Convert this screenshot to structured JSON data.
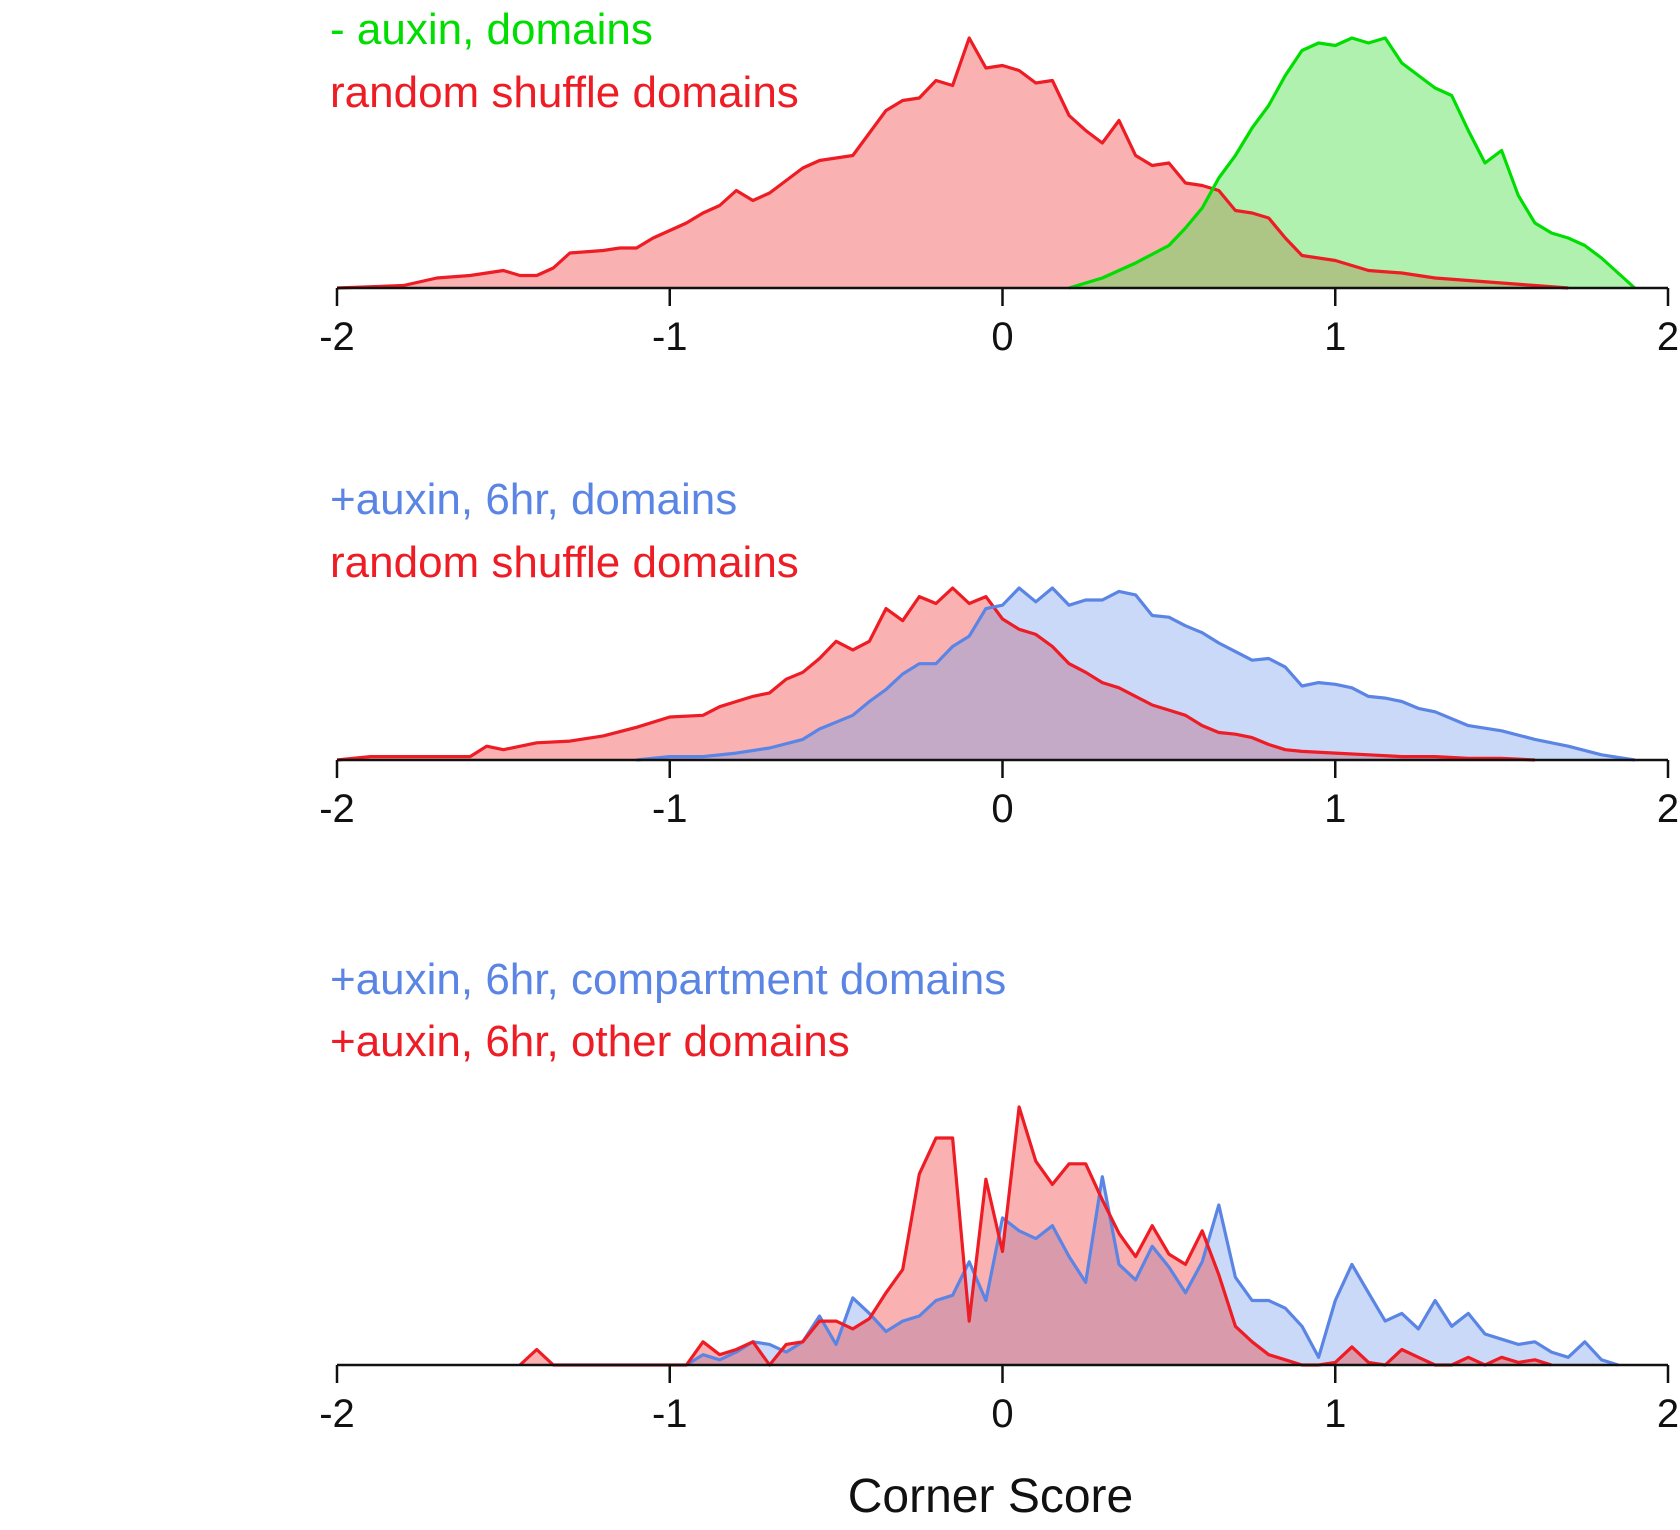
{
  "chart_data": [
    {
      "type": "area",
      "xlim": [
        -2,
        2
      ],
      "ylim": [
        0,
        1
      ],
      "xticks": [
        "-2",
        "-1",
        "0",
        "1",
        "2"
      ],
      "legend_position": "top-left",
      "series": [
        {
          "name": "random shuffle domains",
          "color": "#ee1c24",
          "fill": "rgba(240, 70, 70, 0.42)",
          "x": [
            -2.0,
            -1.8,
            -1.7,
            -1.6,
            -1.5,
            -1.45,
            -1.4,
            -1.35,
            -1.3,
            -1.2,
            -1.15,
            -1.1,
            -1.05,
            -1.0,
            -0.95,
            -0.9,
            -0.85,
            -0.8,
            -0.75,
            -0.7,
            -0.65,
            -0.6,
            -0.55,
            -0.5,
            -0.45,
            -0.4,
            -0.35,
            -0.3,
            -0.25,
            -0.2,
            -0.15,
            -0.1,
            -0.05,
            0.0,
            0.05,
            0.1,
            0.15,
            0.2,
            0.25,
            0.3,
            0.35,
            0.4,
            0.45,
            0.5,
            0.55,
            0.6,
            0.65,
            0.7,
            0.75,
            0.8,
            0.85,
            0.9,
            1.0,
            1.1,
            1.2,
            1.3,
            1.4,
            1.5,
            1.6,
            1.7
          ],
          "values": [
            0.0,
            0.01,
            0.04,
            0.05,
            0.07,
            0.05,
            0.05,
            0.08,
            0.14,
            0.15,
            0.16,
            0.16,
            0.2,
            0.23,
            0.26,
            0.3,
            0.33,
            0.39,
            0.35,
            0.38,
            0.43,
            0.48,
            0.51,
            0.52,
            0.53,
            0.62,
            0.71,
            0.75,
            0.76,
            0.83,
            0.81,
            1.0,
            0.88,
            0.89,
            0.87,
            0.82,
            0.83,
            0.69,
            0.63,
            0.58,
            0.67,
            0.53,
            0.49,
            0.5,
            0.42,
            0.41,
            0.39,
            0.31,
            0.3,
            0.28,
            0.2,
            0.13,
            0.11,
            0.07,
            0.06,
            0.04,
            0.03,
            0.02,
            0.01,
            0.0
          ]
        },
        {
          "name": "- auxin, domains",
          "color": "#00dd00",
          "fill": "rgba(80, 225, 80, 0.45)",
          "x": [
            0.2,
            0.3,
            0.4,
            0.5,
            0.55,
            0.6,
            0.65,
            0.7,
            0.75,
            0.8,
            0.85,
            0.9,
            0.95,
            1.0,
            1.05,
            1.1,
            1.15,
            1.2,
            1.25,
            1.3,
            1.35,
            1.4,
            1.45,
            1.5,
            1.55,
            1.6,
            1.65,
            1.7,
            1.75,
            1.8,
            1.85,
            1.9
          ],
          "values": [
            0.0,
            0.04,
            0.1,
            0.17,
            0.24,
            0.32,
            0.44,
            0.53,
            0.64,
            0.73,
            0.85,
            0.95,
            0.98,
            0.97,
            1.0,
            0.98,
            1.0,
            0.9,
            0.85,
            0.8,
            0.77,
            0.63,
            0.5,
            0.55,
            0.37,
            0.26,
            0.22,
            0.2,
            0.17,
            0.12,
            0.06,
            0.0
          ]
        }
      ]
    },
    {
      "type": "area",
      "xlim": [
        -2,
        2
      ],
      "ylim": [
        0,
        1
      ],
      "xticks": [
        "-2",
        "-1",
        "0",
        "1",
        "2"
      ],
      "legend_position": "top-left",
      "series": [
        {
          "name": "random shuffle domains",
          "color": "#ee1c24",
          "fill": "rgba(240, 70, 70, 0.42)",
          "x": [
            -2.0,
            -1.9,
            -1.7,
            -1.6,
            -1.55,
            -1.5,
            -1.4,
            -1.3,
            -1.2,
            -1.1,
            -1.0,
            -0.9,
            -0.85,
            -0.8,
            -0.75,
            -0.7,
            -0.65,
            -0.6,
            -0.55,
            -0.5,
            -0.45,
            -0.4,
            -0.35,
            -0.3,
            -0.25,
            -0.2,
            -0.15,
            -0.1,
            -0.05,
            0.0,
            0.05,
            0.1,
            0.15,
            0.2,
            0.25,
            0.3,
            0.35,
            0.4,
            0.45,
            0.5,
            0.55,
            0.6,
            0.65,
            0.7,
            0.75,
            0.8,
            0.85,
            0.9,
            1.0,
            1.1,
            1.2,
            1.3,
            1.4,
            1.5,
            1.6
          ],
          "values": [
            0.0,
            0.02,
            0.02,
            0.02,
            0.08,
            0.06,
            0.1,
            0.11,
            0.14,
            0.19,
            0.25,
            0.26,
            0.31,
            0.34,
            0.37,
            0.39,
            0.47,
            0.51,
            0.59,
            0.69,
            0.64,
            0.69,
            0.88,
            0.81,
            0.95,
            0.91,
            1.0,
            0.91,
            0.95,
            0.82,
            0.76,
            0.73,
            0.66,
            0.56,
            0.51,
            0.45,
            0.42,
            0.37,
            0.32,
            0.29,
            0.26,
            0.2,
            0.16,
            0.15,
            0.13,
            0.09,
            0.06,
            0.05,
            0.04,
            0.03,
            0.02,
            0.02,
            0.01,
            0.01,
            0.0
          ]
        },
        {
          "name": "+auxin, 6hr, domains",
          "color": "#5b85e5",
          "fill": "rgba(120, 160, 235, 0.40)",
          "x": [
            -1.1,
            -1.0,
            -0.9,
            -0.8,
            -0.7,
            -0.6,
            -0.55,
            -0.5,
            -0.45,
            -0.4,
            -0.35,
            -0.3,
            -0.25,
            -0.2,
            -0.15,
            -0.1,
            -0.05,
            0.0,
            0.05,
            0.1,
            0.15,
            0.2,
            0.25,
            0.3,
            0.35,
            0.4,
            0.45,
            0.5,
            0.55,
            0.6,
            0.65,
            0.7,
            0.75,
            0.8,
            0.85,
            0.9,
            0.95,
            1.0,
            1.05,
            1.1,
            1.15,
            1.2,
            1.25,
            1.3,
            1.4,
            1.5,
            1.6,
            1.7,
            1.8,
            1.9
          ],
          "values": [
            0.0,
            0.02,
            0.02,
            0.04,
            0.07,
            0.12,
            0.18,
            0.22,
            0.26,
            0.34,
            0.41,
            0.5,
            0.56,
            0.56,
            0.66,
            0.72,
            0.88,
            0.9,
            1.0,
            0.92,
            1.0,
            0.9,
            0.93,
            0.93,
            0.98,
            0.96,
            0.84,
            0.83,
            0.78,
            0.74,
            0.68,
            0.63,
            0.58,
            0.59,
            0.54,
            0.43,
            0.45,
            0.44,
            0.42,
            0.37,
            0.36,
            0.34,
            0.3,
            0.28,
            0.2,
            0.17,
            0.12,
            0.08,
            0.03,
            0.0
          ]
        }
      ]
    },
    {
      "type": "area",
      "xlim": [
        -2,
        2
      ],
      "ylim": [
        0,
        1
      ],
      "xticks": [
        "-2",
        "-1",
        "0",
        "1",
        "2"
      ],
      "xlabel": "Corner Score",
      "legend_position": "top-left",
      "series": [
        {
          "name": "+auxin, 6hr,  compartment domains",
          "color": "#5b85e5",
          "fill": "rgba(120, 160, 235, 0.40)",
          "x": [
            -0.95,
            -0.9,
            -0.85,
            -0.8,
            -0.75,
            -0.7,
            -0.65,
            -0.6,
            -0.55,
            -0.5,
            -0.45,
            -0.4,
            -0.35,
            -0.3,
            -0.25,
            -0.2,
            -0.15,
            -0.1,
            -0.05,
            0.0,
            0.05,
            0.1,
            0.15,
            0.2,
            0.25,
            0.3,
            0.35,
            0.4,
            0.45,
            0.5,
            0.55,
            0.6,
            0.65,
            0.7,
            0.75,
            0.8,
            0.85,
            0.9,
            0.95,
            1.0,
            1.05,
            1.1,
            1.15,
            1.2,
            1.25,
            1.3,
            1.35,
            1.4,
            1.45,
            1.5,
            1.55,
            1.6,
            1.65,
            1.7,
            1.75,
            1.8,
            1.85
          ],
          "values": [
            0.0,
            0.04,
            0.02,
            0.05,
            0.09,
            0.08,
            0.05,
            0.09,
            0.19,
            0.08,
            0.26,
            0.2,
            0.13,
            0.17,
            0.19,
            0.25,
            0.27,
            0.4,
            0.25,
            0.57,
            0.52,
            0.49,
            0.54,
            0.42,
            0.32,
            0.73,
            0.39,
            0.33,
            0.46,
            0.38,
            0.28,
            0.4,
            0.62,
            0.34,
            0.25,
            0.25,
            0.22,
            0.15,
            0.03,
            0.25,
            0.39,
            0.28,
            0.17,
            0.2,
            0.14,
            0.25,
            0.15,
            0.2,
            0.12,
            0.1,
            0.08,
            0.09,
            0.05,
            0.03,
            0.09,
            0.02,
            0.0
          ]
        },
        {
          "name": "+auxin, 6hr, other domains",
          "color": "#ee1c24",
          "fill": "rgba(240, 70, 70, 0.42)",
          "x": [
            -1.45,
            -1.4,
            -1.35,
            -0.95,
            -0.9,
            -0.85,
            -0.8,
            -0.75,
            -0.7,
            -0.65,
            -0.6,
            -0.55,
            -0.5,
            -0.45,
            -0.4,
            -0.35,
            -0.3,
            -0.25,
            -0.2,
            -0.15,
            -0.1,
            -0.05,
            0.0,
            0.05,
            0.1,
            0.15,
            0.2,
            0.25,
            0.3,
            0.35,
            0.4,
            0.45,
            0.5,
            0.55,
            0.6,
            0.65,
            0.7,
            0.75,
            0.8,
            0.85,
            0.9,
            0.95,
            1.0,
            1.05,
            1.1,
            1.15,
            1.2,
            1.25,
            1.3,
            1.35,
            1.4,
            1.45,
            1.5,
            1.55,
            1.6,
            1.65
          ],
          "values": [
            0.0,
            0.06,
            0.0,
            0.0,
            0.09,
            0.04,
            0.06,
            0.09,
            0.0,
            0.08,
            0.09,
            0.17,
            0.17,
            0.14,
            0.18,
            0.28,
            0.37,
            0.74,
            0.88,
            0.88,
            0.17,
            0.72,
            0.44,
            1.0,
            0.79,
            0.7,
            0.78,
            0.78,
            0.64,
            0.51,
            0.42,
            0.54,
            0.43,
            0.39,
            0.52,
            0.35,
            0.15,
            0.09,
            0.04,
            0.02,
            0.0,
            0.0,
            0.01,
            0.07,
            0.01,
            0.0,
            0.06,
            0.03,
            0.0,
            0.0,
            0.03,
            0.0,
            0.03,
            0.01,
            0.02,
            0.0
          ]
        }
      ]
    }
  ]
}
